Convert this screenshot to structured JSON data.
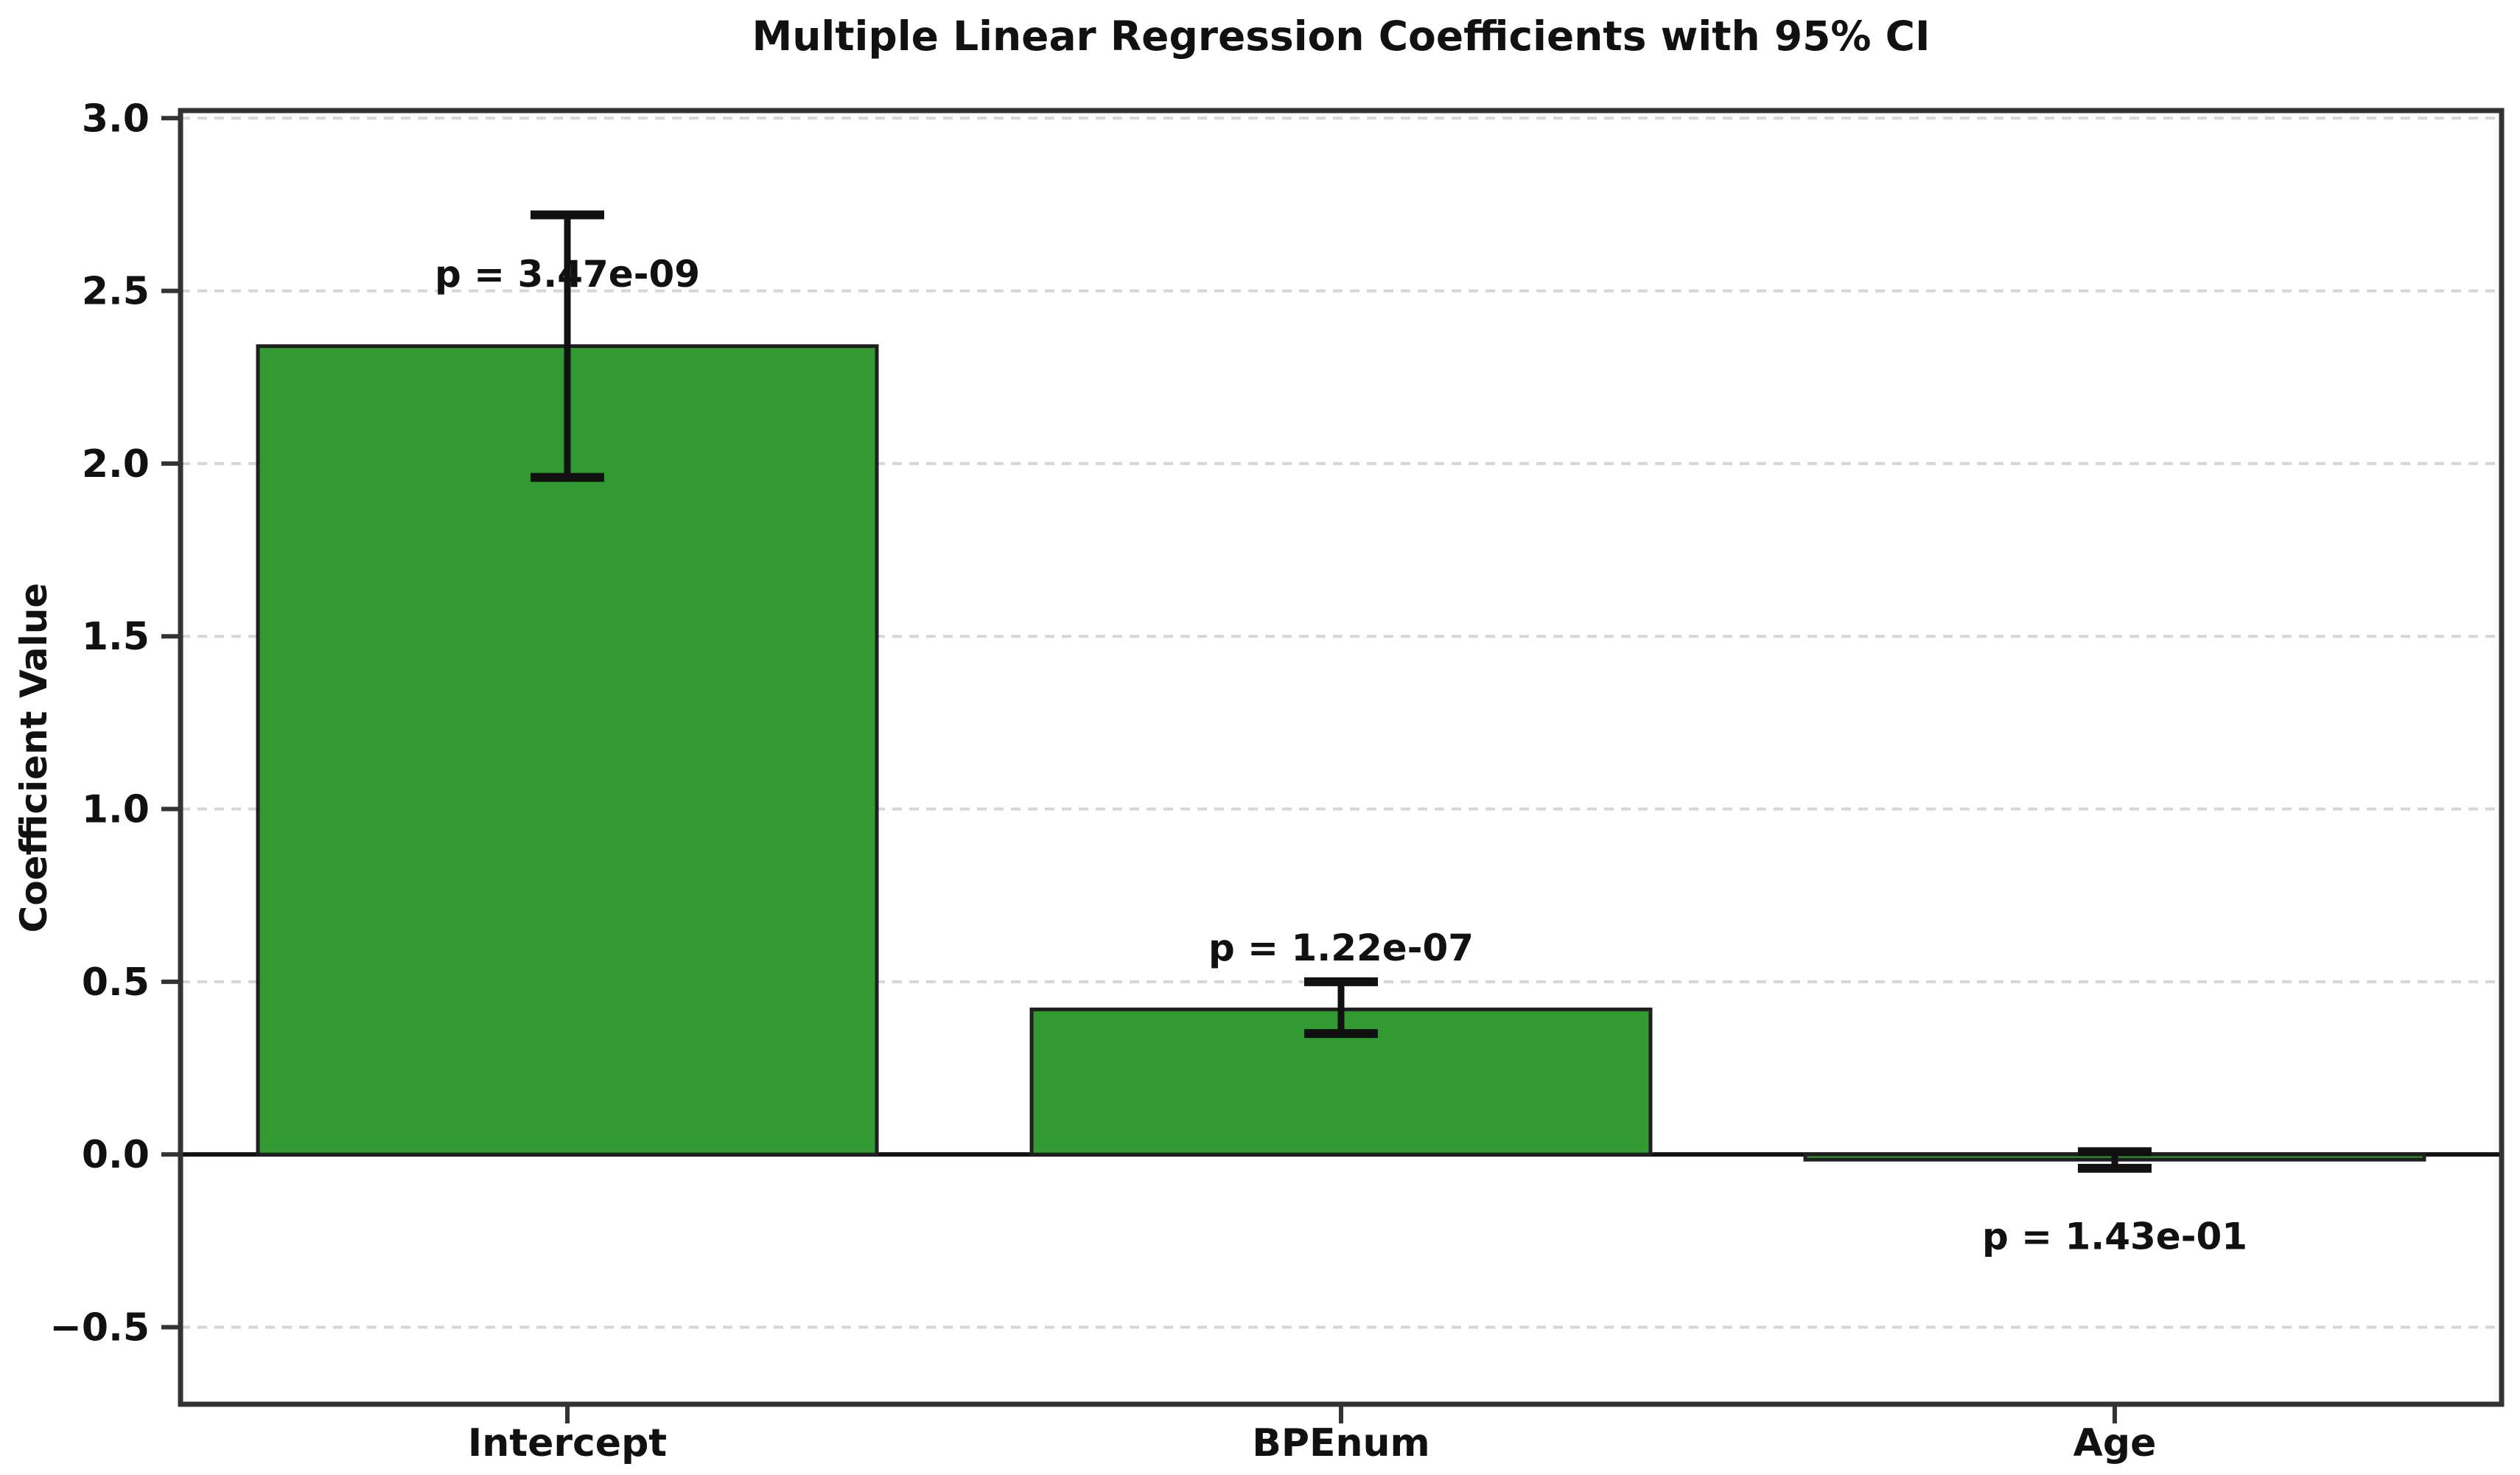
{
  "chart_data": {
    "type": "bar",
    "title": "Multiple Linear Regression Coefficients with 95% CI",
    "xlabel": "",
    "ylabel": "Coefficient Value",
    "categories": [
      "Intercept",
      "BPEnum",
      "Age"
    ],
    "values": [
      2.34,
      0.42,
      -0.015
    ],
    "ci_lower": [
      1.96,
      0.35,
      -0.04
    ],
    "ci_upper": [
      2.72,
      0.5,
      0.008
    ],
    "p_labels": [
      "p = 3.47e-09",
      "p = 1.22e-07",
      "p = 1.43e-01"
    ],
    "p_label_y": [
      2.55,
      0.6,
      -0.235
    ],
    "ytick_values": [
      3.0,
      2.5,
      2.0,
      1.5,
      1.0,
      0.5,
      0.0,
      -0.5
    ],
    "ytick_labels": [
      "3.0",
      "2.5",
      "2.0",
      "1.5",
      "1.0",
      "0.5",
      "0.0",
      "−0.5"
    ],
    "ylim": [
      -0.723,
      3.022
    ],
    "grid": true,
    "grid_style": "dashed",
    "legend": "none",
    "bar_width_fraction": 0.8,
    "bar_color": "#339933",
    "bar_edge_color": "#1f1f1f",
    "error_bar_color": "#111111",
    "grid_color": "#d6d6d6",
    "axis_color": "#333333",
    "zero_line_color": "#111111",
    "text_color": "#111111",
    "background_color": "#ffffff"
  }
}
